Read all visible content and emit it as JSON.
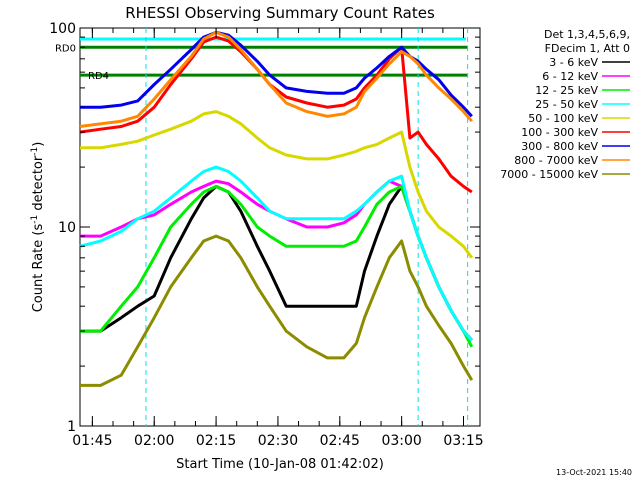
{
  "chart_data": {
    "type": "line",
    "title": "RHESSI Observing Summary Count Rates",
    "xlabel": "Start Time (10-Jan-08 01:42:02)",
    "ylabel_main": "Count Rate (s",
    "ylabel_sup": "-1",
    "ylabel_rest": " detector",
    "ylabel_sup2": "-1",
    "ylabel_end": ")",
    "yscale": "log",
    "ylim": [
      1,
      100
    ],
    "xlim_minutes": [
      0,
      97
    ],
    "x_ticks": [
      {
        "label": "01:45",
        "minutes": 3
      },
      {
        "label": "02:00",
        "minutes": 18
      },
      {
        "label": "02:15",
        "minutes": 33
      },
      {
        "label": "02:30",
        "minutes": 48
      },
      {
        "label": "02:45",
        "minutes": 63
      },
      {
        "label": "03:00",
        "minutes": 78
      },
      {
        "label": "03:15",
        "minutes": 93
      }
    ],
    "y_ticks": [
      {
        "label": "1",
        "value": 1
      },
      {
        "label": "10",
        "value": 10
      },
      {
        "label": "100",
        "value": 100
      }
    ],
    "legend_header": [
      "Det 1,3,4,5,6,9,",
      "FDecim 1, Att 0"
    ],
    "legend_position": "right",
    "markers": [
      {
        "label": "RD0",
        "value": 80,
        "color": "#008000"
      },
      {
        "label": "RD4",
        "value": 58,
        "color": "#008000"
      }
    ],
    "series": [
      {
        "name": "3 - 6 keV",
        "color": "#000000",
        "x": [
          0,
          5,
          10,
          14,
          18,
          22,
          27,
          30,
          33,
          36,
          39,
          43,
          46,
          50,
          55,
          60,
          64,
          67,
          69,
          72,
          75,
          78,
          80,
          82,
          84,
          87,
          90,
          93,
          95
        ],
        "y": [
          3,
          3,
          3.5,
          4,
          4.5,
          7,
          11,
          14,
          16,
          15,
          12,
          8,
          6,
          4,
          4,
          4,
          4,
          4,
          6,
          9,
          13,
          16,
          12,
          9,
          7,
          5,
          3.8,
          3,
          2.7
        ]
      },
      {
        "name": "6 - 12 keV",
        "color": "#ff00ff",
        "x": [
          0,
          5,
          10,
          14,
          18,
          22,
          27,
          30,
          33,
          36,
          39,
          43,
          46,
          50,
          55,
          60,
          64,
          67,
          69,
          72,
          75,
          78,
          80,
          82,
          84,
          87,
          90,
          93,
          95
        ],
        "y": [
          9,
          9,
          10,
          11,
          11.5,
          13,
          15,
          16,
          17,
          16.5,
          15,
          13,
          12,
          11,
          10,
          10,
          10.5,
          11.5,
          13,
          15,
          17,
          16,
          12,
          9,
          7,
          5,
          3.8,
          3,
          2.7
        ]
      },
      {
        "name": "12 - 25 keV",
        "color": "#00ee00",
        "x": [
          0,
          5,
          10,
          14,
          18,
          22,
          27,
          30,
          33,
          36,
          39,
          43,
          46,
          50,
          55,
          60,
          64,
          67,
          69,
          72,
          75,
          78,
          80,
          82,
          84,
          87,
          90,
          93,
          95
        ],
        "y": [
          3,
          3,
          4,
          5,
          7,
          10,
          13,
          15,
          16,
          15,
          13,
          10,
          9,
          8,
          8,
          8,
          8,
          8.5,
          10,
          13,
          15,
          16,
          12,
          9,
          7,
          5,
          3.8,
          3,
          2.5
        ]
      },
      {
        "name": "25 - 50 keV",
        "color": "#00ffff",
        "x": [
          0,
          5,
          10,
          14,
          18,
          22,
          27,
          30,
          33,
          36,
          39,
          43,
          46,
          50,
          55,
          60,
          64,
          67,
          69,
          72,
          75,
          78,
          80,
          82,
          84,
          87,
          90,
          93,
          95
        ],
        "y": [
          8,
          8.5,
          9.5,
          11,
          12,
          14,
          17,
          19,
          20,
          19,
          17,
          14,
          12,
          11,
          11,
          11,
          11,
          12,
          13,
          15,
          17,
          18,
          12,
          9,
          7,
          5,
          3.8,
          3,
          2.7
        ]
      },
      {
        "name": "50 - 100 keV",
        "color": "#d8d800",
        "x": [
          0,
          5,
          10,
          14,
          18,
          22,
          27,
          30,
          33,
          36,
          39,
          43,
          46,
          50,
          55,
          60,
          64,
          67,
          69,
          72,
          75,
          78,
          80,
          82,
          84,
          87,
          90,
          93,
          95
        ],
        "y": [
          25,
          25,
          26,
          27,
          29,
          31,
          34,
          37,
          38,
          36,
          33,
          28,
          25,
          23,
          22,
          22,
          23,
          24,
          25,
          26,
          28,
          30,
          20,
          15,
          12,
          10,
          9,
          8,
          7
        ]
      },
      {
        "name": "100 - 300 keV",
        "color": "#ff0000",
        "x": [
          0,
          5,
          10,
          14,
          18,
          22,
          27,
          30,
          33,
          36,
          39,
          43,
          46,
          50,
          55,
          60,
          64,
          67,
          69,
          72,
          75,
          78,
          80,
          82,
          84,
          87,
          90,
          93,
          95
        ],
        "y": [
          30,
          31,
          32,
          34,
          40,
          52,
          70,
          85,
          90,
          86,
          76,
          62,
          52,
          45,
          42,
          40,
          41,
          44,
          50,
          58,
          70,
          80,
          28,
          30,
          26,
          22,
          18,
          16,
          15
        ]
      },
      {
        "name": "300 - 800 keV",
        "color": "#0000ee",
        "x": [
          0,
          5,
          10,
          14,
          18,
          22,
          27,
          30,
          33,
          36,
          39,
          43,
          46,
          50,
          55,
          60,
          64,
          67,
          69,
          72,
          75,
          78,
          80,
          82,
          84,
          87,
          90,
          93,
          95
        ],
        "y": [
          40,
          40,
          41,
          43,
          52,
          62,
          78,
          90,
          95,
          92,
          82,
          68,
          58,
          50,
          48,
          47,
          47,
          50,
          56,
          63,
          72,
          80,
          72,
          68,
          62,
          55,
          46,
          40,
          36
        ]
      },
      {
        "name": "800 - 7000 keV",
        "color": "#ff8800",
        "x": [
          0,
          5,
          10,
          14,
          18,
          22,
          27,
          30,
          33,
          36,
          39,
          43,
          46,
          50,
          55,
          60,
          64,
          67,
          69,
          72,
          75,
          78,
          80,
          82,
          84,
          87,
          90,
          93,
          95
        ],
        "y": [
          32,
          33,
          34,
          36,
          44,
          55,
          72,
          88,
          95,
          90,
          78,
          62,
          52,
          42,
          38,
          36,
          37,
          40,
          48,
          56,
          66,
          76,
          72,
          66,
          58,
          50,
          44,
          38,
          34
        ]
      },
      {
        "name": "7000 - 15000 keV",
        "color": "#8c8c00",
        "x": [
          0,
          5,
          10,
          14,
          18,
          22,
          27,
          30,
          33,
          36,
          39,
          43,
          46,
          50,
          55,
          60,
          64,
          67,
          69,
          72,
          75,
          78,
          80,
          82,
          84,
          87,
          90,
          93,
          95
        ],
        "y": [
          1.6,
          1.6,
          1.8,
          2.5,
          3.5,
          5,
          7,
          8.5,
          9,
          8.5,
          7,
          5,
          4,
          3,
          2.5,
          2.2,
          2.2,
          2.6,
          3.5,
          5,
          7,
          8.5,
          6,
          5,
          4,
          3.2,
          2.6,
          2,
          1.7
        ]
      }
    ],
    "timestamp": "13-Oct-2021 15:40"
  }
}
